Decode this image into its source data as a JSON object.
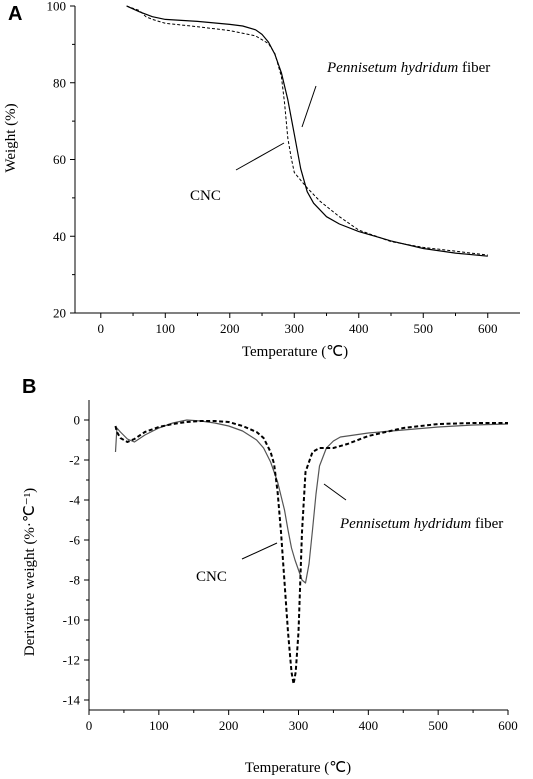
{
  "chart_data": [
    {
      "panel": "A",
      "type": "line",
      "xlabel": "Temperature (℃)",
      "ylabel": "Weight (%)",
      "xlim": [
        -40,
        650
      ],
      "ylim": [
        20,
        100
      ],
      "xticks": [
        0,
        100,
        200,
        300,
        400,
        500,
        600
      ],
      "yticks": [
        20,
        40,
        60,
        80,
        100
      ],
      "grid": false,
      "series": [
        {
          "name": "Pennisetum hydridum fiber",
          "name_italic": "Pennisetum hydridum",
          "name_rest": " fiber",
          "style": "solid",
          "color": "#000000",
          "x": [
            40,
            60,
            80,
            100,
            150,
            200,
            220,
            240,
            250,
            260,
            270,
            280,
            290,
            300,
            310,
            320,
            330,
            350,
            370,
            400,
            450,
            500,
            550,
            600
          ],
          "y": [
            100,
            98.5,
            97.2,
            96.5,
            96.0,
            95.2,
            94.8,
            93.8,
            92.6,
            90.6,
            87.4,
            82.6,
            75.6,
            66.6,
            57.6,
            51.6,
            48.6,
            45.1,
            43.2,
            41.2,
            38.8,
            36.8,
            35.6,
            34.8
          ]
        },
        {
          "name": "CNC",
          "style": "dashed",
          "color": "#000000",
          "x": [
            40,
            60,
            70,
            80,
            100,
            150,
            200,
            240,
            260,
            270,
            280,
            285,
            290,
            295,
            300,
            310,
            320,
            340,
            370,
            400,
            450,
            500,
            550,
            600
          ],
          "y": [
            100,
            98.8,
            97.2,
            96.5,
            95.5,
            94.6,
            93.6,
            92.2,
            90.2,
            87.6,
            81.6,
            74.6,
            65.6,
            60.6,
            56.6,
            54.6,
            52.6,
            49.1,
            45.1,
            41.6,
            38.6,
            37.1,
            36.1,
            35.1
          ]
        }
      ],
      "annotations": [
        "Pennisetum hydridum fiber",
        "CNC"
      ]
    },
    {
      "panel": "B",
      "type": "line",
      "xlabel": "Temperature (℃)",
      "ylabel": "Derivative weight (%·℃⁻¹)",
      "xlim": [
        0,
        600
      ],
      "ylim": [
        -14.5,
        1
      ],
      "xticks": [
        0,
        100,
        200,
        300,
        400,
        500,
        600
      ],
      "yticks": [
        0,
        -2,
        -4,
        -6,
        -8,
        -10,
        -12,
        -14
      ],
      "grid": false,
      "series": [
        {
          "name": "Pennisetum hydridum fiber",
          "name_italic": "Pennisetum hydridum",
          "name_rest": " fiber",
          "style": "solid",
          "color": "#555555",
          "x": [
            38,
            40,
            45,
            55,
            65,
            80,
            100,
            120,
            140,
            160,
            180,
            200,
            220,
            240,
            250,
            260,
            270,
            280,
            285,
            290,
            295,
            300,
            305,
            310,
            315,
            320,
            325,
            330,
            340,
            350,
            360,
            380,
            400,
            450,
            500,
            550,
            600
          ],
          "y": [
            -1.6,
            -0.4,
            -0.6,
            -0.95,
            -1.1,
            -0.75,
            -0.4,
            -0.15,
            0,
            -0.05,
            -0.15,
            -0.3,
            -0.55,
            -1.0,
            -1.4,
            -2.1,
            -3.1,
            -4.5,
            -5.5,
            -6.4,
            -7.0,
            -7.5,
            -8.0,
            -8.15,
            -7.2,
            -5.5,
            -3.7,
            -2.3,
            -1.4,
            -1.05,
            -0.85,
            -0.75,
            -0.65,
            -0.5,
            -0.35,
            -0.25,
            -0.2
          ]
        },
        {
          "name": "CNC",
          "style": "dashed",
          "color": "#000000",
          "x": [
            38,
            40,
            45,
            55,
            65,
            80,
            100,
            120,
            140,
            160,
            180,
            200,
            220,
            240,
            250,
            260,
            265,
            270,
            275,
            280,
            285,
            290,
            293,
            296,
            300,
            305,
            310,
            320,
            330,
            340,
            350,
            370,
            400,
            450,
            500,
            550,
            600
          ],
          "y": [
            -0.3,
            -0.6,
            -0.9,
            -1.1,
            -0.95,
            -0.6,
            -0.35,
            -0.2,
            -0.1,
            -0.05,
            -0.05,
            -0.1,
            -0.3,
            -0.6,
            -0.9,
            -1.6,
            -2.2,
            -3.6,
            -5.6,
            -8.1,
            -10.6,
            -12.6,
            -13.2,
            -12.6,
            -10.6,
            -5.6,
            -2.6,
            -1.6,
            -1.4,
            -1.4,
            -1.4,
            -1.2,
            -0.8,
            -0.4,
            -0.2,
            -0.15,
            -0.15
          ]
        }
      ],
      "annotations": [
        "Pennisetum hydridum fiber",
        "CNC"
      ]
    }
  ]
}
